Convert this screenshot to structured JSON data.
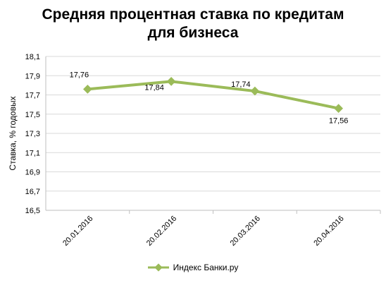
{
  "chart_data": {
    "type": "line",
    "title_line1": "Средняя процентная ставка по кредитам",
    "title_line2": "для бизнеса",
    "ylabel": "Ставка, % годовых",
    "xlabel": "",
    "categories": [
      "20.01.2016",
      "20.02.2016",
      "20.03.2016",
      "20.04.2016"
    ],
    "yticks": [
      "16,5",
      "16,7",
      "16,9",
      "17,1",
      "17,3",
      "17,5",
      "17,7",
      "17,9",
      "18,1"
    ],
    "ylim": [
      16.5,
      18.1
    ],
    "grid": true,
    "legend_position": "bottom",
    "series": [
      {
        "name": "Индекс Банки.ру",
        "values": [
          17.76,
          17.84,
          17.74,
          17.56
        ],
        "labels": [
          "17,76",
          "17,84",
          "17,74",
          "17,56"
        ],
        "color": "#9bbb59"
      }
    ]
  }
}
